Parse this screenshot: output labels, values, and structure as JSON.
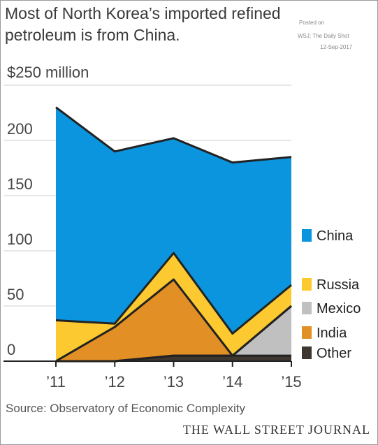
{
  "header": {
    "title": "Most of North Korea’s imported refined petroleum is from China.",
    "posted_on": "Posted on",
    "posted_by": "WSJ; The Daily Shot",
    "posted_date": "12-Sep-2017"
  },
  "chart_data": {
    "type": "area",
    "stacked": true,
    "x": [
      "’11",
      "’12",
      "’13",
      "’14",
      "’15"
    ],
    "ylabel": "$250  million",
    "yticks": [
      "0",
      "50",
      "100",
      "150",
      "200"
    ],
    "ylim": [
      0,
      250
    ],
    "grid": true,
    "legend_position": "right",
    "series": [
      {
        "name": "Other",
        "color": "#3d3730",
        "values": [
          0,
          0,
          5,
          5,
          5
        ]
      },
      {
        "name": "Mexico",
        "color": "#c0c0c0",
        "values": [
          0,
          0,
          0,
          0,
          45
        ]
      },
      {
        "name": "India",
        "color": "#e28f26",
        "values": [
          0,
          31,
          69,
          0,
          0
        ]
      },
      {
        "name": "Russia",
        "color": "#fcca30",
        "values": [
          37,
          3,
          24,
          20,
          19
        ]
      },
      {
        "name": "China",
        "color": "#0b95de",
        "values": [
          193,
          156,
          104,
          155,
          116
        ]
      }
    ],
    "legend_order": [
      "China",
      "Russia",
      "Mexico",
      "India",
      "Other"
    ]
  },
  "footer": {
    "source": "Source: Observatory of Economic Complexity",
    "brand": "THE WALL STREET JOURNAL"
  }
}
